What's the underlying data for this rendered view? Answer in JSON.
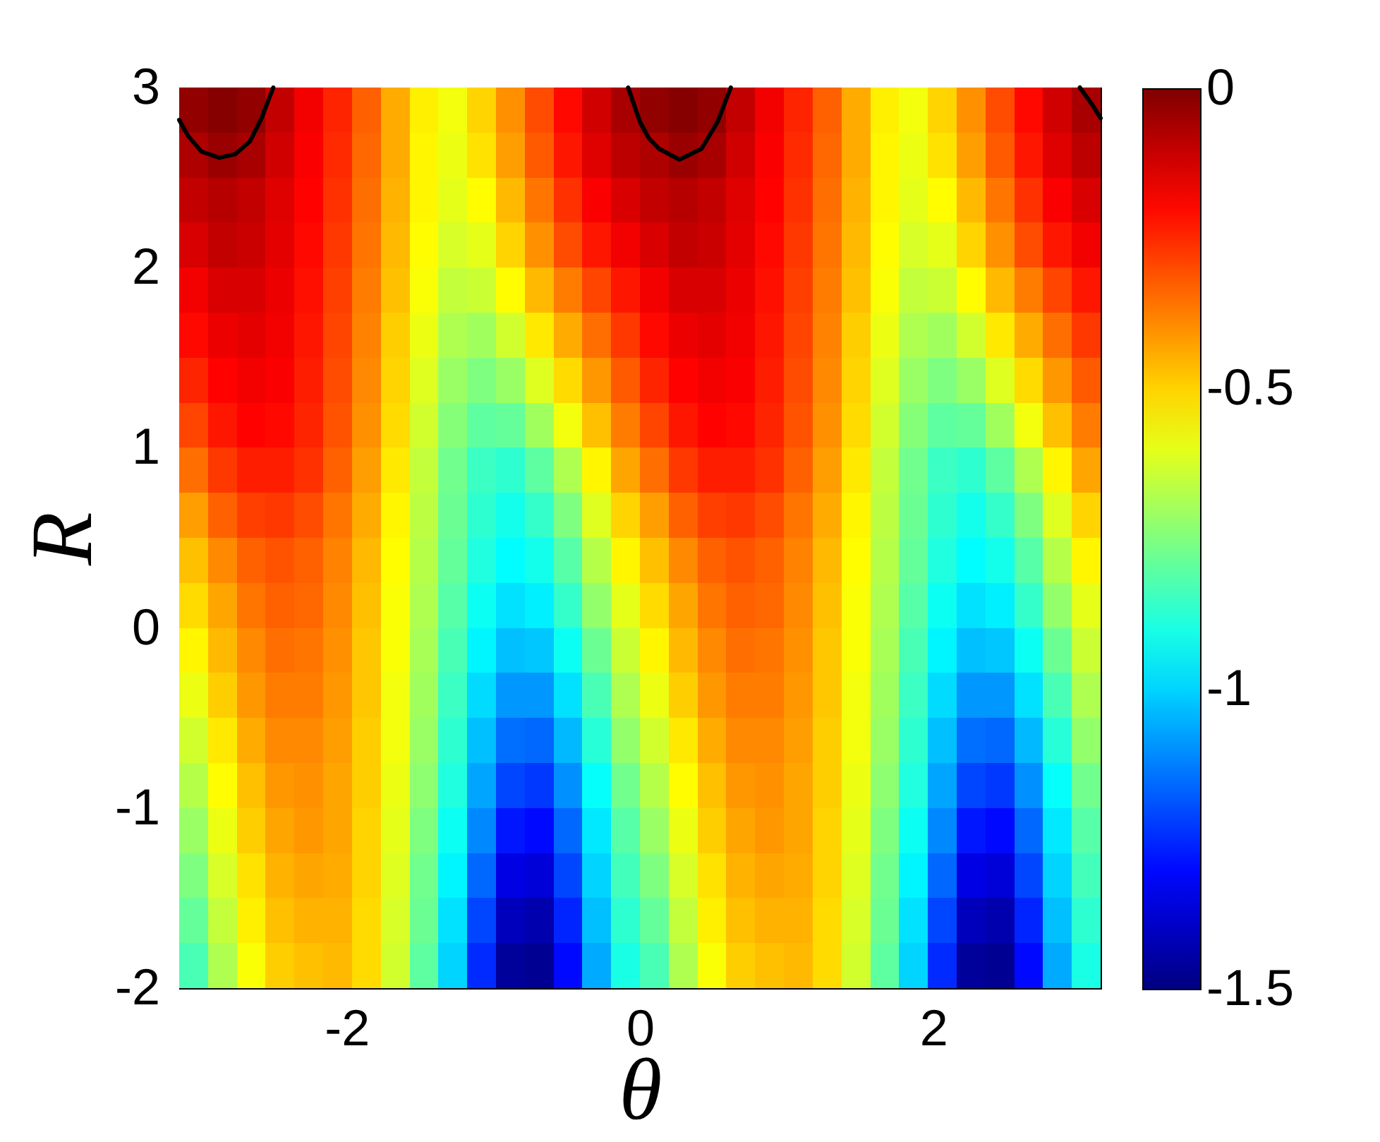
{
  "chart_data": {
    "type": "heatmap",
    "xlabel": "θ",
    "ylabel": "R",
    "xlim": [
      -3.1416,
      3.1416
    ],
    "xticks": [
      -2,
      0,
      2
    ],
    "ylim": [
      -2,
      3
    ],
    "yticks": [
      -2,
      -1,
      0,
      1,
      2,
      3
    ],
    "clim": [
      -1.5,
      0
    ],
    "cticks": [
      0,
      -0.5,
      -1,
      -1.5
    ],
    "cells": [
      [
        -0.03,
        -0.01,
        -0.03,
        -0.1,
        -0.17,
        -0.24,
        -0.33,
        -0.44,
        -0.54,
        -0.58,
        -0.5,
        -0.4,
        -0.3,
        -0.2,
        -0.12,
        -0.06,
        -0.03,
        -0.01,
        -0.03,
        -0.1,
        -0.17,
        -0.24,
        -0.33,
        -0.44,
        -0.54,
        -0.58,
        -0.5,
        -0.4,
        -0.3,
        -0.2,
        -0.12,
        -0.06
      ],
      [
        -0.07,
        -0.04,
        -0.06,
        -0.12,
        -0.18,
        -0.25,
        -0.34,
        -0.44,
        -0.55,
        -0.59,
        -0.52,
        -0.42,
        -0.32,
        -0.22,
        -0.14,
        -0.09,
        -0.07,
        -0.04,
        -0.06,
        -0.12,
        -0.18,
        -0.25,
        -0.34,
        -0.44,
        -0.55,
        -0.59,
        -0.52,
        -0.42,
        -0.32,
        -0.22,
        -0.14,
        -0.09
      ],
      [
        -0.1,
        -0.08,
        -0.1,
        -0.14,
        -0.19,
        -0.26,
        -0.35,
        -0.45,
        -0.55,
        -0.6,
        -0.56,
        -0.46,
        -0.36,
        -0.26,
        -0.18,
        -0.13,
        -0.1,
        -0.08,
        -0.1,
        -0.14,
        -0.19,
        -0.26,
        -0.35,
        -0.45,
        -0.55,
        -0.6,
        -0.56,
        -0.46,
        -0.36,
        -0.26,
        -0.18,
        -0.13
      ],
      [
        -0.13,
        -0.1,
        -0.11,
        -0.15,
        -0.2,
        -0.27,
        -0.36,
        -0.46,
        -0.56,
        -0.62,
        -0.6,
        -0.5,
        -0.4,
        -0.3,
        -0.22,
        -0.17,
        -0.13,
        -0.1,
        -0.11,
        -0.15,
        -0.2,
        -0.27,
        -0.36,
        -0.46,
        -0.56,
        -0.62,
        -0.6,
        -0.5,
        -0.4,
        -0.3,
        -0.22,
        -0.17
      ],
      [
        -0.17,
        -0.13,
        -0.13,
        -0.16,
        -0.21,
        -0.28,
        -0.37,
        -0.47,
        -0.57,
        -0.65,
        -0.64,
        -0.56,
        -0.46,
        -0.37,
        -0.29,
        -0.22,
        -0.17,
        -0.13,
        -0.13,
        -0.16,
        -0.21,
        -0.28,
        -0.37,
        -0.47,
        -0.57,
        -0.65,
        -0.64,
        -0.56,
        -0.46,
        -0.37,
        -0.29,
        -0.22
      ],
      [
        -0.2,
        -0.16,
        -0.15,
        -0.17,
        -0.22,
        -0.29,
        -0.38,
        -0.49,
        -0.59,
        -0.68,
        -0.7,
        -0.63,
        -0.53,
        -0.44,
        -0.35,
        -0.27,
        -0.2,
        -0.16,
        -0.15,
        -0.17,
        -0.22,
        -0.29,
        -0.38,
        -0.49,
        -0.59,
        -0.68,
        -0.7,
        -0.63,
        -0.53,
        -0.44,
        -0.35,
        -0.27
      ],
      [
        -0.24,
        -0.19,
        -0.17,
        -0.18,
        -0.23,
        -0.3,
        -0.39,
        -0.5,
        -0.61,
        -0.71,
        -0.75,
        -0.71,
        -0.61,
        -0.51,
        -0.41,
        -0.32,
        -0.24,
        -0.19,
        -0.17,
        -0.18,
        -0.23,
        -0.3,
        -0.39,
        -0.5,
        -0.61,
        -0.71,
        -0.75,
        -0.71,
        -0.61,
        -0.51,
        -0.41,
        -0.32
      ],
      [
        -0.29,
        -0.22,
        -0.19,
        -0.2,
        -0.24,
        -0.31,
        -0.4,
        -0.51,
        -0.63,
        -0.74,
        -0.8,
        -0.79,
        -0.7,
        -0.58,
        -0.47,
        -0.37,
        -0.29,
        -0.22,
        -0.19,
        -0.2,
        -0.24,
        -0.31,
        -0.4,
        -0.51,
        -0.63,
        -0.74,
        -0.8,
        -0.79,
        -0.7,
        -0.58,
        -0.47,
        -0.37
      ],
      [
        -0.35,
        -0.27,
        -0.23,
        -0.23,
        -0.26,
        -0.33,
        -0.42,
        -0.53,
        -0.65,
        -0.77,
        -0.85,
        -0.87,
        -0.8,
        -0.68,
        -0.55,
        -0.43,
        -0.35,
        -0.27,
        -0.23,
        -0.23,
        -0.26,
        -0.33,
        -0.42,
        -0.53,
        -0.65,
        -0.77,
        -0.85,
        -0.87,
        -0.8,
        -0.68,
        -0.55,
        -0.43
      ],
      [
        -0.42,
        -0.33,
        -0.28,
        -0.27,
        -0.3,
        -0.36,
        -0.44,
        -0.55,
        -0.66,
        -0.78,
        -0.87,
        -0.91,
        -0.86,
        -0.75,
        -0.61,
        -0.5,
        -0.42,
        -0.33,
        -0.28,
        -0.27,
        -0.3,
        -0.36,
        -0.44,
        -0.55,
        -0.66,
        -0.78,
        -0.87,
        -0.91,
        -0.86,
        -0.75,
        -0.61,
        -0.5
      ],
      [
        -0.47,
        -0.39,
        -0.33,
        -0.31,
        -0.33,
        -0.38,
        -0.46,
        -0.56,
        -0.67,
        -0.79,
        -0.89,
        -0.94,
        -0.91,
        -0.81,
        -0.67,
        -0.55,
        -0.47,
        -0.39,
        -0.33,
        -0.31,
        -0.33,
        -0.38,
        -0.46,
        -0.56,
        -0.67,
        -0.79,
        -0.89,
        -0.94,
        -0.91,
        -0.81,
        -0.67,
        -0.55
      ],
      [
        -0.51,
        -0.43,
        -0.36,
        -0.33,
        -0.34,
        -0.39,
        -0.47,
        -0.57,
        -0.68,
        -0.81,
        -0.92,
        -0.98,
        -0.96,
        -0.86,
        -0.72,
        -0.6,
        -0.51,
        -0.43,
        -0.36,
        -0.33,
        -0.34,
        -0.39,
        -0.47,
        -0.57,
        -0.68,
        -0.81,
        -0.92,
        -0.98,
        -0.96,
        -0.86,
        -0.72,
        -0.6
      ],
      [
        -0.55,
        -0.46,
        -0.39,
        -0.35,
        -0.36,
        -0.4,
        -0.48,
        -0.57,
        -0.69,
        -0.83,
        -0.95,
        -1.03,
        -1.02,
        -0.92,
        -0.78,
        -0.64,
        -0.55,
        -0.46,
        -0.39,
        -0.35,
        -0.36,
        -0.4,
        -0.48,
        -0.57,
        -0.69,
        -0.83,
        -0.95,
        -1.03,
        -1.02,
        -0.92,
        -0.78,
        -0.64
      ],
      [
        -0.59,
        -0.49,
        -0.41,
        -0.37,
        -0.37,
        -0.41,
        -0.48,
        -0.58,
        -0.7,
        -0.85,
        -0.99,
        -1.09,
        -1.09,
        -0.98,
        -0.83,
        -0.68,
        -0.59,
        -0.49,
        -0.41,
        -0.37,
        -0.37,
        -0.41,
        -0.48,
        -0.58,
        -0.7,
        -0.85,
        -0.99,
        -1.09,
        -1.09,
        -0.98,
        -0.83,
        -0.68
      ],
      [
        -0.63,
        -0.53,
        -0.44,
        -0.39,
        -0.39,
        -0.42,
        -0.49,
        -0.58,
        -0.71,
        -0.87,
        -1.03,
        -1.15,
        -1.16,
        -1.04,
        -0.88,
        -0.72,
        -0.63,
        -0.53,
        -0.44,
        -0.39,
        -0.39,
        -0.42,
        -0.49,
        -0.58,
        -0.71,
        -0.87,
        -1.03,
        -1.15,
        -1.16,
        -1.04,
        -0.88,
        -0.72
      ],
      [
        -0.67,
        -0.56,
        -0.47,
        -0.41,
        -0.4,
        -0.43,
        -0.49,
        -0.59,
        -0.73,
        -0.89,
        -1.07,
        -1.21,
        -1.23,
        -1.1,
        -0.93,
        -0.77,
        -0.67,
        -0.56,
        -0.47,
        -0.41,
        -0.4,
        -0.43,
        -0.49,
        -0.59,
        -0.73,
        -0.89,
        -1.07,
        -1.21,
        -1.23,
        -1.1,
        -0.93,
        -0.77
      ],
      [
        -0.71,
        -0.59,
        -0.49,
        -0.43,
        -0.41,
        -0.43,
        -0.5,
        -0.6,
        -0.75,
        -0.92,
        -1.11,
        -1.28,
        -1.3,
        -1.16,
        -0.97,
        -0.81,
        -0.71,
        -0.59,
        -0.49,
        -0.43,
        -0.41,
        -0.43,
        -0.5,
        -0.6,
        -0.75,
        -0.92,
        -1.11,
        -1.28,
        -1.3,
        -1.16,
        -0.97,
        -0.81
      ],
      [
        -0.75,
        -0.62,
        -0.52,
        -0.45,
        -0.43,
        -0.44,
        -0.5,
        -0.61,
        -0.77,
        -0.95,
        -1.16,
        -1.35,
        -1.37,
        -1.21,
        -1.0,
        -0.84,
        -0.75,
        -0.62,
        -0.52,
        -0.45,
        -0.43,
        -0.44,
        -0.5,
        -0.61,
        -0.77,
        -0.95,
        -1.16,
        -1.35,
        -1.37,
        -1.21,
        -1.0,
        -0.84
      ],
      [
        -0.79,
        -0.65,
        -0.54,
        -0.47,
        -0.45,
        -0.45,
        -0.51,
        -0.62,
        -0.78,
        -0.98,
        -1.21,
        -1.41,
        -1.43,
        -1.26,
        -1.03,
        -0.87,
        -0.79,
        -0.65,
        -0.54,
        -0.47,
        -0.45,
        -0.45,
        -0.51,
        -0.62,
        -0.78,
        -0.98,
        -1.21,
        -1.41,
        -1.43,
        -1.26,
        -1.03,
        -0.87
      ],
      [
        -0.83,
        -0.68,
        -0.57,
        -0.49,
        -0.47,
        -0.46,
        -0.51,
        -0.63,
        -0.8,
        -1.0,
        -1.25,
        -1.46,
        -1.47,
        -1.3,
        -1.06,
        -0.9,
        -0.83,
        -0.68,
        -0.57,
        -0.49,
        -0.47,
        -0.46,
        -0.51,
        -0.63,
        -0.8,
        -1.0,
        -1.25,
        -1.46,
        -1.47,
        -1.3,
        -1.06,
        -0.9
      ]
    ],
    "series": [
      {
        "type": "line",
        "color": "#000000",
        "x": [
          -3.1416,
          -3.08,
          -2.99,
          -2.87,
          -2.76,
          -2.66,
          -2.58,
          -2.5,
          null,
          -0.08,
          0.0,
          0.06,
          0.13,
          0.27,
          0.42,
          0.53,
          0.62,
          null,
          3.0,
          3.08,
          3.1416
        ],
        "values": [
          2.82,
          2.73,
          2.645,
          2.61,
          2.63,
          2.7,
          2.83,
          3.0,
          null,
          3.0,
          2.81,
          2.72,
          2.66,
          2.6,
          2.66,
          2.81,
          3.0,
          null,
          3.0,
          2.91,
          2.83
        ]
      }
    ]
  }
}
